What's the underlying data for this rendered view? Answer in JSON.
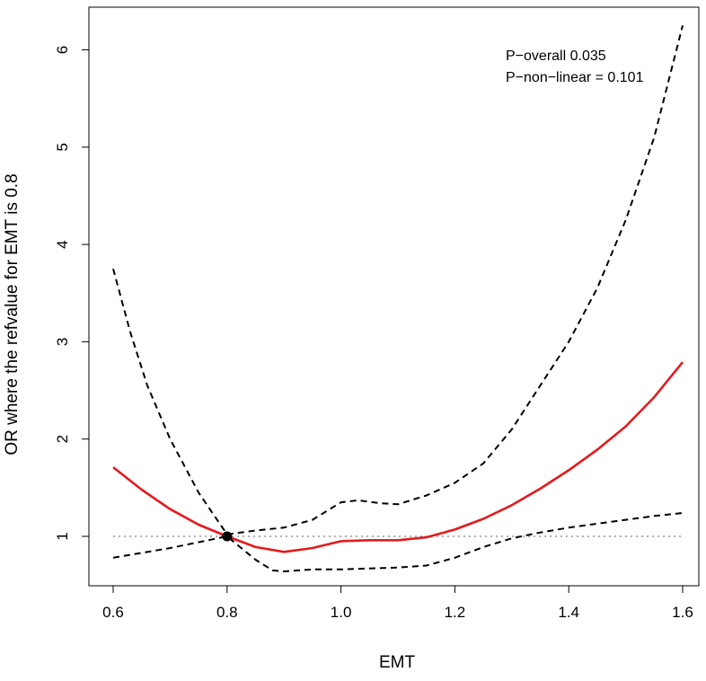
{
  "chart_data": {
    "type": "line",
    "title": "",
    "xlabel": "EMT",
    "ylabel": "OR where the refvalue for EMT is 0.8",
    "xlim": [
      0.6,
      1.6
    ],
    "ylim": [
      0.6,
      6.2
    ],
    "x_ticks": [
      "0.6",
      "0.8",
      "1.0",
      "1.2",
      "1.4",
      "1.6"
    ],
    "y_ticks": [
      "1",
      "2",
      "3",
      "4",
      "5",
      "6"
    ],
    "grid": false,
    "annotations": [
      "P−overall 0.035",
      "P−non−linear = 0.101"
    ],
    "reference_line": {
      "y": 1,
      "style": "dotted",
      "color": "#808080"
    },
    "reference_point": {
      "x": 0.8,
      "y": 1
    },
    "series": [
      {
        "role": "estimate",
        "color": "#e41a1c",
        "style": "solid",
        "points": [
          [
            0.6,
            1.71
          ],
          [
            0.65,
            1.48
          ],
          [
            0.7,
            1.28
          ],
          [
            0.75,
            1.12
          ],
          [
            0.8,
            1.0
          ],
          [
            0.85,
            0.89
          ],
          [
            0.9,
            0.84
          ],
          [
            0.95,
            0.88
          ],
          [
            1.0,
            0.95
          ],
          [
            1.05,
            0.96
          ],
          [
            1.1,
            0.96
          ],
          [
            1.15,
            0.99
          ],
          [
            1.2,
            1.07
          ],
          [
            1.25,
            1.18
          ],
          [
            1.3,
            1.32
          ],
          [
            1.35,
            1.49
          ],
          [
            1.4,
            1.68
          ],
          [
            1.45,
            1.89
          ],
          [
            1.5,
            2.13
          ],
          [
            1.55,
            2.43
          ],
          [
            1.6,
            2.79
          ]
        ]
      },
      {
        "role": "upper-ci",
        "color": "#000000",
        "style": "dashed",
        "points": [
          [
            0.6,
            3.75
          ],
          [
            0.63,
            3.1
          ],
          [
            0.66,
            2.55
          ],
          [
            0.7,
            2.0
          ],
          [
            0.75,
            1.45
          ],
          [
            0.8,
            1.02
          ],
          [
            0.85,
            1.06
          ],
          [
            0.9,
            1.09
          ],
          [
            0.95,
            1.17
          ],
          [
            1.0,
            1.35
          ],
          [
            1.03,
            1.37
          ],
          [
            1.07,
            1.34
          ],
          [
            1.1,
            1.33
          ],
          [
            1.15,
            1.42
          ],
          [
            1.2,
            1.55
          ],
          [
            1.25,
            1.75
          ],
          [
            1.3,
            2.1
          ],
          [
            1.35,
            2.55
          ],
          [
            1.4,
            3.0
          ],
          [
            1.45,
            3.55
          ],
          [
            1.5,
            4.25
          ],
          [
            1.55,
            5.1
          ],
          [
            1.6,
            6.25
          ]
        ]
      },
      {
        "role": "lower-ci",
        "color": "#000000",
        "style": "dashed",
        "points": [
          [
            0.6,
            0.78
          ],
          [
            0.65,
            0.83
          ],
          [
            0.7,
            0.88
          ],
          [
            0.75,
            0.94
          ],
          [
            0.8,
            1.0
          ],
          [
            0.85,
            0.76
          ],
          [
            0.88,
            0.65
          ],
          [
            0.9,
            0.64
          ],
          [
            0.95,
            0.66
          ],
          [
            1.0,
            0.66
          ],
          [
            1.05,
            0.67
          ],
          [
            1.1,
            0.68
          ],
          [
            1.15,
            0.7
          ],
          [
            1.2,
            0.78
          ],
          [
            1.25,
            0.89
          ],
          [
            1.3,
            0.98
          ],
          [
            1.35,
            1.04
          ],
          [
            1.4,
            1.09
          ],
          [
            1.45,
            1.13
          ],
          [
            1.5,
            1.17
          ],
          [
            1.55,
            1.21
          ],
          [
            1.6,
            1.24
          ]
        ]
      }
    ]
  }
}
